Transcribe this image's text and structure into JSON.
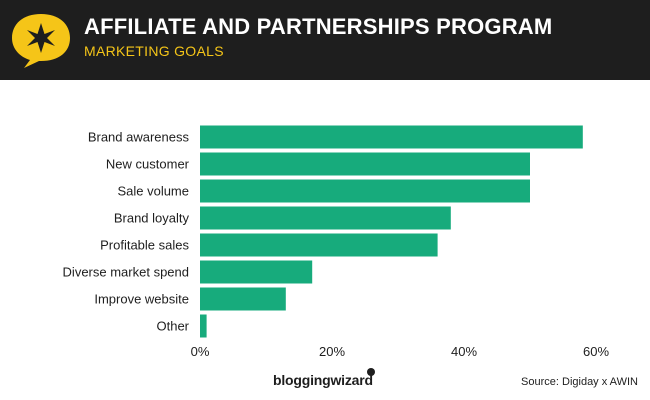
{
  "header": {
    "title": "AFFILIATE AND PARTNERSHIPS PROGRAM",
    "subtitle": "MARKETING GOALS",
    "accent_color": "#f5c518",
    "background_color": "#1e1e1e",
    "logo_icon": "star-speech-bubble-icon"
  },
  "chart_data": {
    "type": "bar",
    "orientation": "horizontal",
    "categories": [
      "Brand awareness",
      "New customer",
      "Sale volume",
      "Brand loyalty",
      "Profitable sales",
      "Diverse market spend",
      "Improve website",
      "Other"
    ],
    "values": [
      58,
      50,
      50,
      38,
      36,
      17,
      13,
      1
    ],
    "value_unit": "%",
    "xlim": [
      0,
      60
    ],
    "xticks": [
      "0%",
      "20%",
      "40%",
      "60%"
    ],
    "xtick_values": [
      0,
      20,
      40,
      60
    ],
    "bar_color": "#17ab7c",
    "grid": false,
    "legend": "none"
  },
  "footer": {
    "brand": "bloggingwizard",
    "source": "Source: Digiday x AWIN"
  }
}
